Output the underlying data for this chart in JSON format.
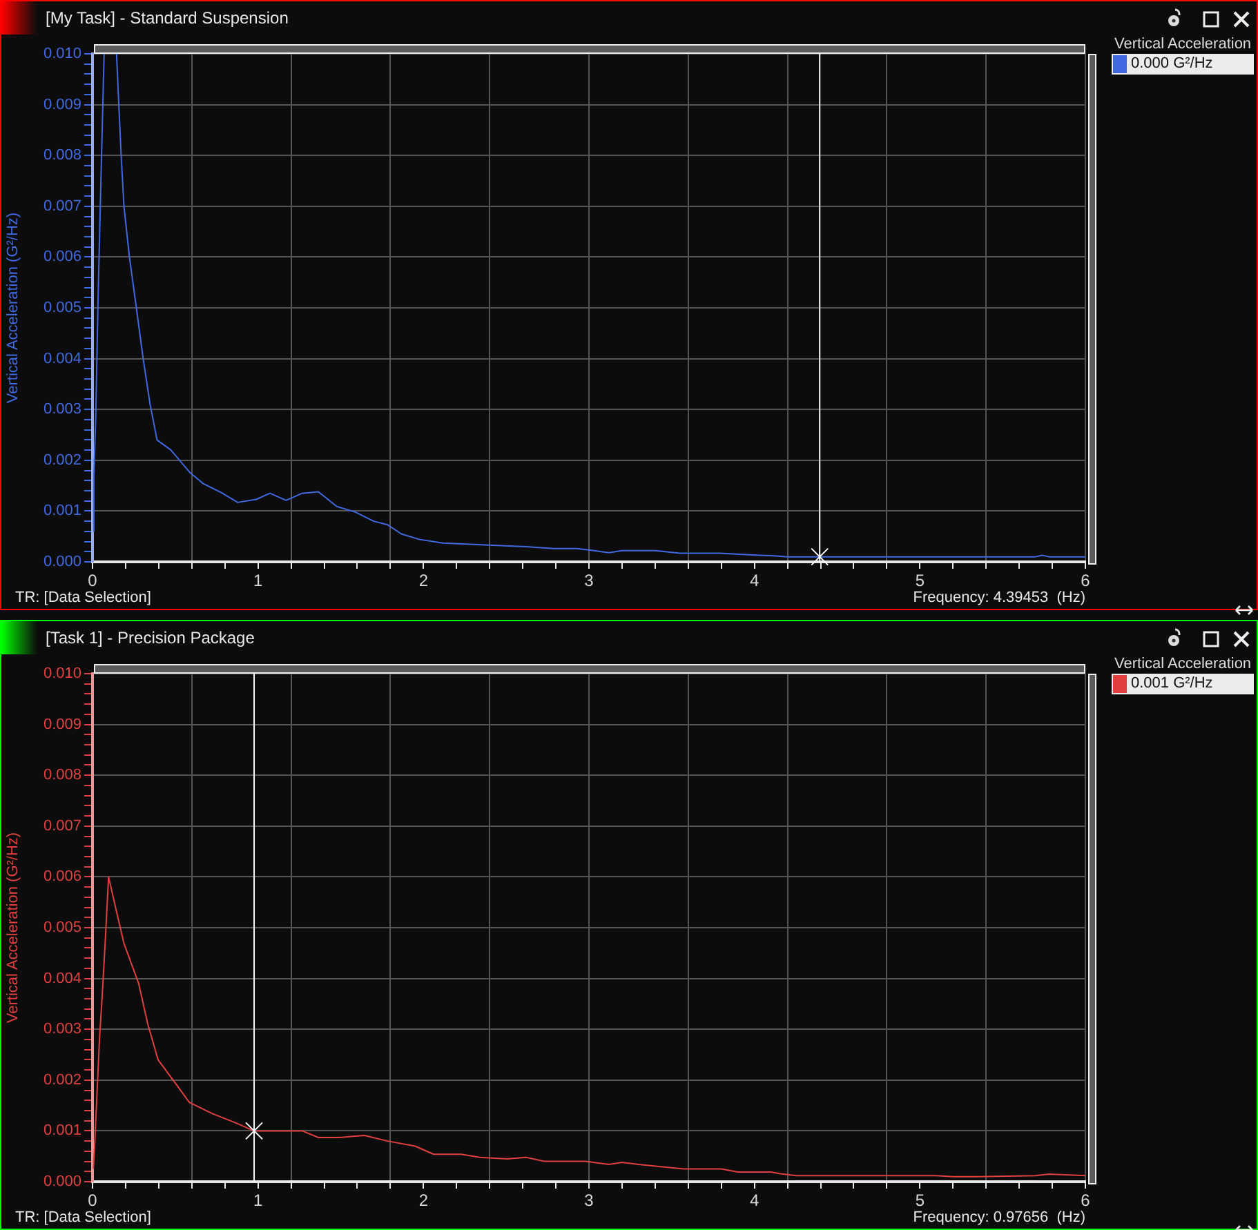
{
  "chart_data": [
    {
      "type": "line",
      "title": "[My Task] - Standard Suspension",
      "ylabel": "Vertical Acceleration (G²/Hz)",
      "legend_title": "Vertical Acceleration",
      "xlim": [
        0,
        6
      ],
      "ylim": [
        0,
        0.01
      ],
      "grid": true,
      "legend": "right",
      "marker": "none",
      "xticks": [
        0,
        {
          "value": 0.2,
          "label": null
        },
        {
          "value": 0.4,
          "label": null
        },
        {
          "value": 0.6,
          "label": null
        },
        {
          "value": 0.8,
          "label": null
        },
        1,
        {
          "value": 1.2,
          "label": null
        },
        {
          "value": 1.4,
          "label": null
        },
        {
          "value": 1.6,
          "label": null
        },
        {
          "value": 1.8,
          "label": null
        },
        2,
        {
          "value": 2.2,
          "label": null
        },
        {
          "value": 2.4,
          "label": null
        },
        {
          "value": 2.6,
          "label": null
        },
        {
          "value": 2.8,
          "label": null
        },
        3,
        {
          "value": 3.2,
          "label": null
        },
        {
          "value": 3.4,
          "label": null
        },
        {
          "value": 3.6,
          "label": null
        },
        {
          "value": 3.8,
          "label": null
        },
        4,
        {
          "value": 4.2,
          "label": null
        },
        {
          "value": 4.4,
          "label": null
        },
        {
          "value": 4.6,
          "label": null
        },
        {
          "value": 4.8,
          "label": null
        },
        5,
        {
          "value": 5.2,
          "label": null
        },
        {
          "value": 5.4,
          "label": null
        },
        {
          "value": 5.6,
          "label": null
        },
        {
          "value": 5.8,
          "label": null
        },
        6
      ],
      "yticks": [
        {
          "value": 0,
          "label": "0.000"
        },
        {
          "value": 0.0002,
          "label": null
        },
        {
          "value": 0.0004,
          "label": null
        },
        {
          "value": 0.0006,
          "label": null
        },
        {
          "value": 0.0008,
          "label": null
        },
        {
          "value": 0.001,
          "label": "0.001"
        },
        {
          "value": 0.0012,
          "label": null
        },
        {
          "value": 0.0014,
          "label": null
        },
        {
          "value": 0.0016,
          "label": null
        },
        {
          "value": 0.0018,
          "label": null
        },
        {
          "value": 0.002,
          "label": "0.002"
        },
        {
          "value": 0.0022,
          "label": null
        },
        {
          "value": 0.0024,
          "label": null
        },
        {
          "value": 0.0026,
          "label": null
        },
        {
          "value": 0.0028,
          "label": null
        },
        {
          "value": 0.003,
          "label": "0.003"
        },
        {
          "value": 0.0032,
          "label": null
        },
        {
          "value": 0.0034,
          "label": null
        },
        {
          "value": 0.0036,
          "label": null
        },
        {
          "value": 0.0038,
          "label": null
        },
        {
          "value": 0.004,
          "label": "0.004"
        },
        {
          "value": 0.0042,
          "label": null
        },
        {
          "value": 0.0044,
          "label": null
        },
        {
          "value": 0.0046,
          "label": null
        },
        {
          "value": 0.0048,
          "label": null
        },
        {
          "value": 0.005,
          "label": "0.005"
        },
        {
          "value": 0.0052,
          "label": null
        },
        {
          "value": 0.0054,
          "label": null
        },
        {
          "value": 0.0056,
          "label": null
        },
        {
          "value": 0.0058,
          "label": null
        },
        {
          "value": 0.006,
          "label": "0.006"
        },
        {
          "value": 0.0062,
          "label": null
        },
        {
          "value": 0.0064,
          "label": null
        },
        {
          "value": 0.0066,
          "label": null
        },
        {
          "value": 0.0068,
          "label": null
        },
        {
          "value": 0.007,
          "label": "0.007"
        },
        {
          "value": 0.0072,
          "label": null
        },
        {
          "value": 0.0074,
          "label": null
        },
        {
          "value": 0.0076,
          "label": null
        },
        {
          "value": 0.0078,
          "label": null
        },
        {
          "value": 0.008,
          "label": "0.008"
        },
        {
          "value": 0.0082,
          "label": null
        },
        {
          "value": 0.0084,
          "label": null
        },
        {
          "value": 0.0086,
          "label": null
        },
        {
          "value": 0.0088,
          "label": null
        },
        {
          "value": 0.009,
          "label": "0.009"
        },
        {
          "value": 0.0092,
          "label": null
        },
        {
          "value": 0.0094,
          "label": null
        },
        {
          "value": 0.0096,
          "label": null
        },
        {
          "value": 0.0098,
          "label": null
        },
        {
          "value": 0.01,
          "label": "0.010"
        }
      ],
      "series": [
        {
          "name": "0.000 G²/Hz",
          "color": "#4169e1",
          "x": [
            0.005,
            0.008,
            0.02,
            0.033,
            0.05,
            0.07,
            0.1,
            0.145,
            0.173,
            0.19,
            0.223,
            0.265,
            0.306,
            0.348,
            0.39,
            0.474,
            0.585,
            0.669,
            0.78,
            0.877,
            0.989,
            1.072,
            1.17,
            1.267,
            1.365,
            1.476,
            1.588,
            1.699,
            1.783,
            1.866,
            1.978,
            2.117,
            2.396,
            2.618,
            2.786,
            2.925,
            3.008,
            3.12,
            3.2,
            3.4,
            3.55,
            3.79,
            4.03,
            4.12,
            4.2,
            4.8,
            4.83,
            4.9,
            5.7,
            5.74,
            5.78,
            6
          ],
          "values": [
            0.0006,
            0.0017,
            0.0029,
            0.0051,
            0.0074,
            0.01,
            null,
            0.01,
            0.008,
            0.007,
            0.006,
            0.005,
            0.004,
            0.0031,
            0.0024,
            0.0022,
            0.00177,
            0.00154,
            0.00136,
            0.00117,
            0.00123,
            0.00135,
            0.00121,
            0.00135,
            0.00138,
            0.00109,
            0.00098,
            0.0008,
            0.00073,
            0.00055,
            0.00044,
            0.00037,
            0.00033,
            0.0003,
            0.00026,
            0.00026,
            0.00023,
            0.00018,
            0.00022,
            0.00022,
            0.00017,
            0.00017,
            0.00013,
            0.00012,
            0.0001,
            0.0001,
            0.0001,
            0.0001,
            0.0001,
            0.00013,
            0.0001,
            0.0001
          ]
        }
      ],
      "ref_lines": [
        {
          "axis": "x",
          "value": 4.39453,
          "color": "#ffffff"
        }
      ],
      "annotations": [
        "TR: [Data Selection]",
        "Frequency: 4.39453  (Hz)"
      ]
    },
    {
      "type": "line",
      "title": "[Task 1] - Precision Package",
      "ylabel": "Vertical Acceleration (G²/Hz)",
      "legend_title": "Vertical Acceleration",
      "xlim": [
        0,
        6
      ],
      "ylim": [
        0,
        0.01
      ],
      "grid": true,
      "legend": "right",
      "marker": "none",
      "xticks": [
        0,
        {
          "value": 0.2,
          "label": null
        },
        {
          "value": 0.4,
          "label": null
        },
        {
          "value": 0.6,
          "label": null
        },
        {
          "value": 0.8,
          "label": null
        },
        1,
        {
          "value": 1.2,
          "label": null
        },
        {
          "value": 1.4,
          "label": null
        },
        {
          "value": 1.6,
          "label": null
        },
        {
          "value": 1.8,
          "label": null
        },
        2,
        {
          "value": 2.2,
          "label": null
        },
        {
          "value": 2.4,
          "label": null
        },
        {
          "value": 2.6,
          "label": null
        },
        {
          "value": 2.8,
          "label": null
        },
        3,
        {
          "value": 3.2,
          "label": null
        },
        {
          "value": 3.4,
          "label": null
        },
        {
          "value": 3.6,
          "label": null
        },
        {
          "value": 3.8,
          "label": null
        },
        4,
        {
          "value": 4.2,
          "label": null
        },
        {
          "value": 4.4,
          "label": null
        },
        {
          "value": 4.6,
          "label": null
        },
        {
          "value": 4.8,
          "label": null
        },
        5,
        {
          "value": 5.2,
          "label": null
        },
        {
          "value": 5.4,
          "label": null
        },
        {
          "value": 5.6,
          "label": null
        },
        {
          "value": 5.8,
          "label": null
        },
        6
      ],
      "yticks": [
        {
          "value": 0,
          "label": "0.000"
        },
        {
          "value": 0.0002,
          "label": null
        },
        {
          "value": 0.0004,
          "label": null
        },
        {
          "value": 0.0006,
          "label": null
        },
        {
          "value": 0.0008,
          "label": null
        },
        {
          "value": 0.001,
          "label": "0.001"
        },
        {
          "value": 0.0012,
          "label": null
        },
        {
          "value": 0.0014,
          "label": null
        },
        {
          "value": 0.0016,
          "label": null
        },
        {
          "value": 0.0018,
          "label": null
        },
        {
          "value": 0.002,
          "label": "0.002"
        },
        {
          "value": 0.0022,
          "label": null
        },
        {
          "value": 0.0024,
          "label": null
        },
        {
          "value": 0.0026,
          "label": null
        },
        {
          "value": 0.0028,
          "label": null
        },
        {
          "value": 0.003,
          "label": "0.003"
        },
        {
          "value": 0.0032,
          "label": null
        },
        {
          "value": 0.0034,
          "label": null
        },
        {
          "value": 0.0036,
          "label": null
        },
        {
          "value": 0.0038,
          "label": null
        },
        {
          "value": 0.004,
          "label": "0.004"
        },
        {
          "value": 0.0042,
          "label": null
        },
        {
          "value": 0.0044,
          "label": null
        },
        {
          "value": 0.0046,
          "label": null
        },
        {
          "value": 0.0048,
          "label": null
        },
        {
          "value": 0.005,
          "label": "0.005"
        },
        {
          "value": 0.0052,
          "label": null
        },
        {
          "value": 0.0054,
          "label": null
        },
        {
          "value": 0.0056,
          "label": null
        },
        {
          "value": 0.0058,
          "label": null
        },
        {
          "value": 0.006,
          "label": "0.006"
        },
        {
          "value": 0.0062,
          "label": null
        },
        {
          "value": 0.0064,
          "label": null
        },
        {
          "value": 0.0066,
          "label": null
        },
        {
          "value": 0.0068,
          "label": null
        },
        {
          "value": 0.007,
          "label": "0.007"
        },
        {
          "value": 0.0072,
          "label": null
        },
        {
          "value": 0.0074,
          "label": null
        },
        {
          "value": 0.0076,
          "label": null
        },
        {
          "value": 0.0078,
          "label": null
        },
        {
          "value": 0.008,
          "label": "0.008"
        },
        {
          "value": 0.0082,
          "label": null
        },
        {
          "value": 0.0084,
          "label": null
        },
        {
          "value": 0.0086,
          "label": null
        },
        {
          "value": 0.0088,
          "label": null
        },
        {
          "value": 0.009,
          "label": "0.009"
        },
        {
          "value": 0.0092,
          "label": null
        },
        {
          "value": 0.0094,
          "label": null
        },
        {
          "value": 0.0096,
          "label": null
        },
        {
          "value": 0.0098,
          "label": null
        },
        {
          "value": 0.01,
          "label": "0.010"
        }
      ],
      "series": [
        {
          "name": "0.001 G²/Hz",
          "color": "#e04040",
          "x": [
            0.005,
            0.014,
            0.028,
            0.042,
            0.061,
            0.078,
            0.097,
            0.139,
            0.189,
            0.279,
            0.334,
            0.396,
            0.487,
            0.585,
            0.724,
            0.864,
            0.975,
            1.114,
            1.267,
            1.365,
            1.49,
            1.643,
            1.783,
            1.95,
            2.061,
            2.228,
            2.34,
            2.507,
            2.618,
            2.73,
            2.98,
            3.12,
            3.2,
            3.3,
            3.57,
            3.8,
            3.9,
            4.1,
            4.15,
            4.25,
            5.1,
            5.2,
            5.35,
            5.7,
            5.78,
            6
          ],
          "values": [
            0.00025,
            0.0008,
            0.0018,
            0.0028,
            0.0038,
            0.0048,
            0.006,
            0.0054,
            0.0047,
            0.0039,
            0.0031,
            0.0024,
            0.002,
            0.00156,
            0.00134,
            0.00116,
            0.001,
            0.001,
            0.001,
            0.00087,
            0.00087,
            0.00091,
            0.0008,
            0.0007,
            0.00054,
            0.00054,
            0.00048,
            0.00045,
            0.00048,
            0.0004,
            0.0004,
            0.00034,
            0.00038,
            0.00034,
            0.00025,
            0.00025,
            0.00019,
            0.00019,
            0.00016,
            0.00012,
            0.00012,
            0.0001,
            0.0001,
            0.00012,
            0.00015,
            0.00012
          ]
        }
      ],
      "ref_lines": [
        {
          "axis": "x",
          "value": 0.97656,
          "color": "#ffffff"
        }
      ],
      "annotations": [
        "TR: [Data Selection]",
        "Frequency: 0.97656  (Hz)"
      ]
    }
  ]
}
